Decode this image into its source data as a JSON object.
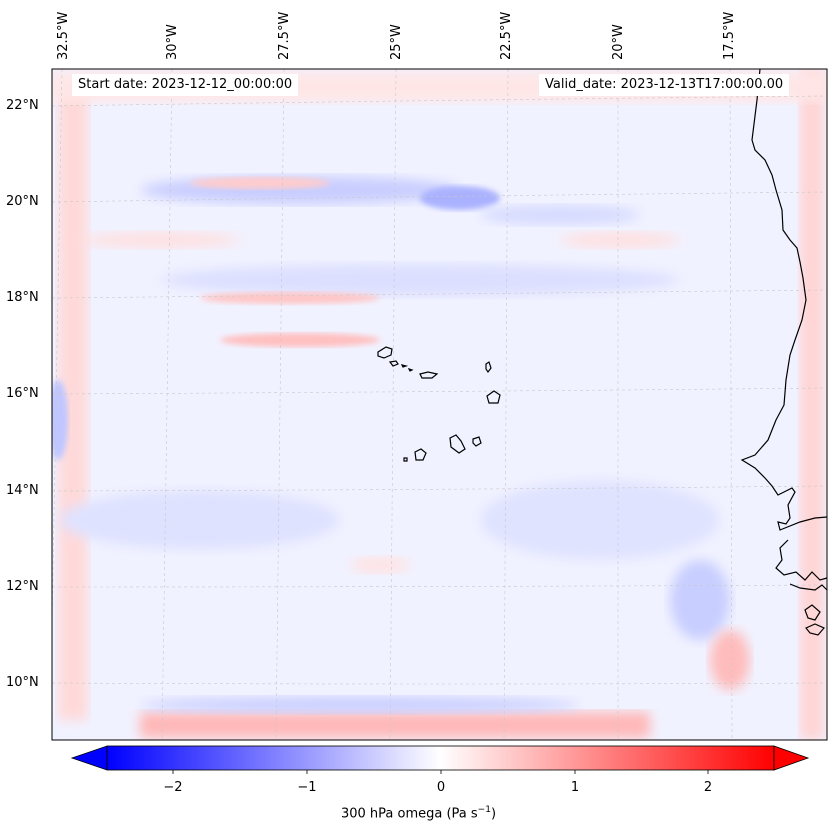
{
  "map": {
    "start_date": "Start date: 2023-12-12_00:00:00",
    "valid_date": "Valid_date: 2023-12-13T17:00:00.00",
    "lon_labels": [
      "32.5°W",
      "30°W",
      "27.5°W",
      "25°W",
      "22.5°W",
      "20°W",
      "17.5°W"
    ],
    "lat_labels": [
      "22°N",
      "20°N",
      "18°N",
      "16°N",
      "14°N",
      "12°N",
      "10°N"
    ],
    "variable": "300 hPa omega",
    "units_base": "(Pa s",
    "units_exp": "−1",
    "units_close": ")"
  },
  "colorbar": {
    "ticks": [
      "−2",
      "−1",
      "0",
      "1",
      "2"
    ],
    "min_color": "#0000ff",
    "mid_color": "#ffffff",
    "max_color": "#ff0000",
    "cmap": "bwr",
    "extend": "both"
  }
}
